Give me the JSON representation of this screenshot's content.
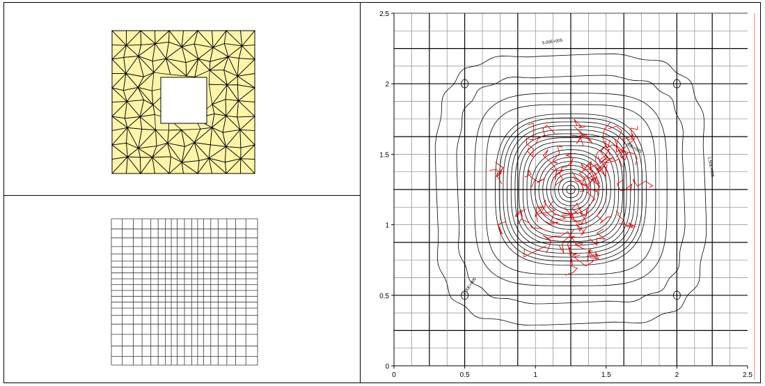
{
  "panels": {
    "top_left": {
      "mesh_fill": "#fff5a8",
      "mesh_stroke": "#000000"
    },
    "bottom_left": {
      "grid_stroke": "#333333"
    }
  },
  "chart_data": {
    "type": "contour",
    "xlim": [
      0,
      2.5
    ],
    "ylim": [
      0,
      2.5
    ],
    "x_ticks": [
      "0",
      "0.5",
      "1",
      "1.5",
      "2",
      "2.5"
    ],
    "y_ticks": [
      "0",
      "0.5",
      "1",
      "1.5",
      "2",
      "2.5"
    ],
    "x_tick_values": [
      0,
      0.5,
      1,
      1.5,
      2,
      2.5
    ],
    "y_tick_values": [
      0,
      0.5,
      1,
      1.5,
      2,
      2.5
    ],
    "grid": true,
    "grid_lines": [
      0.125,
      0.25,
      0.375,
      0.5,
      0.625,
      0.75,
      0.875,
      1.0,
      1.125,
      1.25,
      1.375,
      1.5,
      1.625,
      1.75,
      1.875,
      2.0,
      2.125,
      2.25,
      2.375
    ],
    "bold_grid_lines": [
      0.25,
      0.5,
      0.875,
      1.25,
      1.625,
      2.0,
      2.25
    ],
    "center": [
      1.25,
      1.25
    ],
    "contour_color": "#000000",
    "overlay_color": "#e00000",
    "contour_labels": [
      "1.00E+005",
      "5.00E+005",
      "1.00E+005",
      "1.50E+006"
    ]
  }
}
